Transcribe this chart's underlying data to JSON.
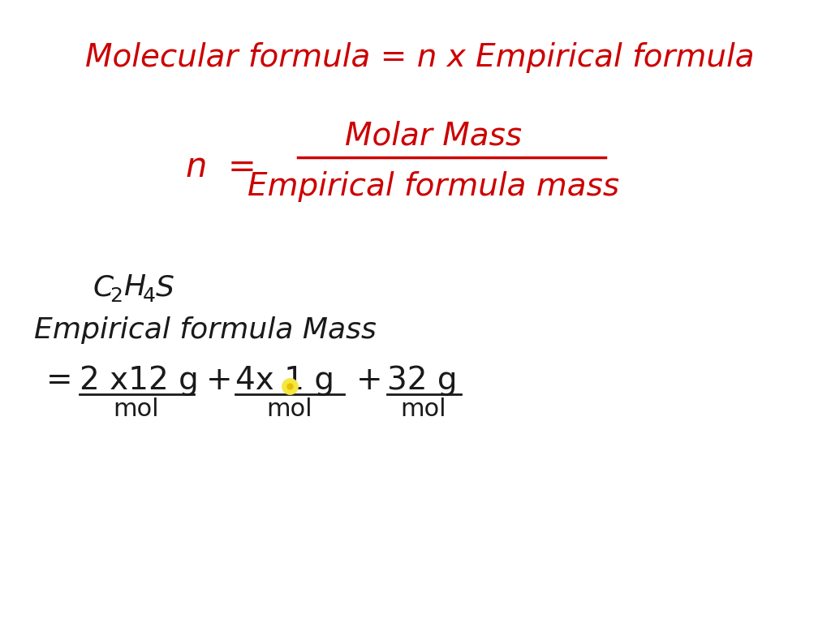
{
  "bg_color": "#ffffff",
  "red_color": "#cc0000",
  "black_color": "#1a1a1a",
  "yellow_dot_color": "#f5e642",
  "title_line1": "Molecular formula = n x Empirical formula",
  "n_eq_label": "n  =",
  "numerator": "Molar Mass",
  "denominator": "Empirical formula mass",
  "formula": "C",
  "formula_sub2": "2",
  "formula_H": "H",
  "formula_sub4": "4",
  "formula_S": "S",
  "emp_label": "Empirical formula Mass",
  "calc_line": "= 2 x12 g    +  4x 1 g    +  32 g",
  "mol1": "mol",
  "mol2": "mol",
  "mol3": "mol"
}
